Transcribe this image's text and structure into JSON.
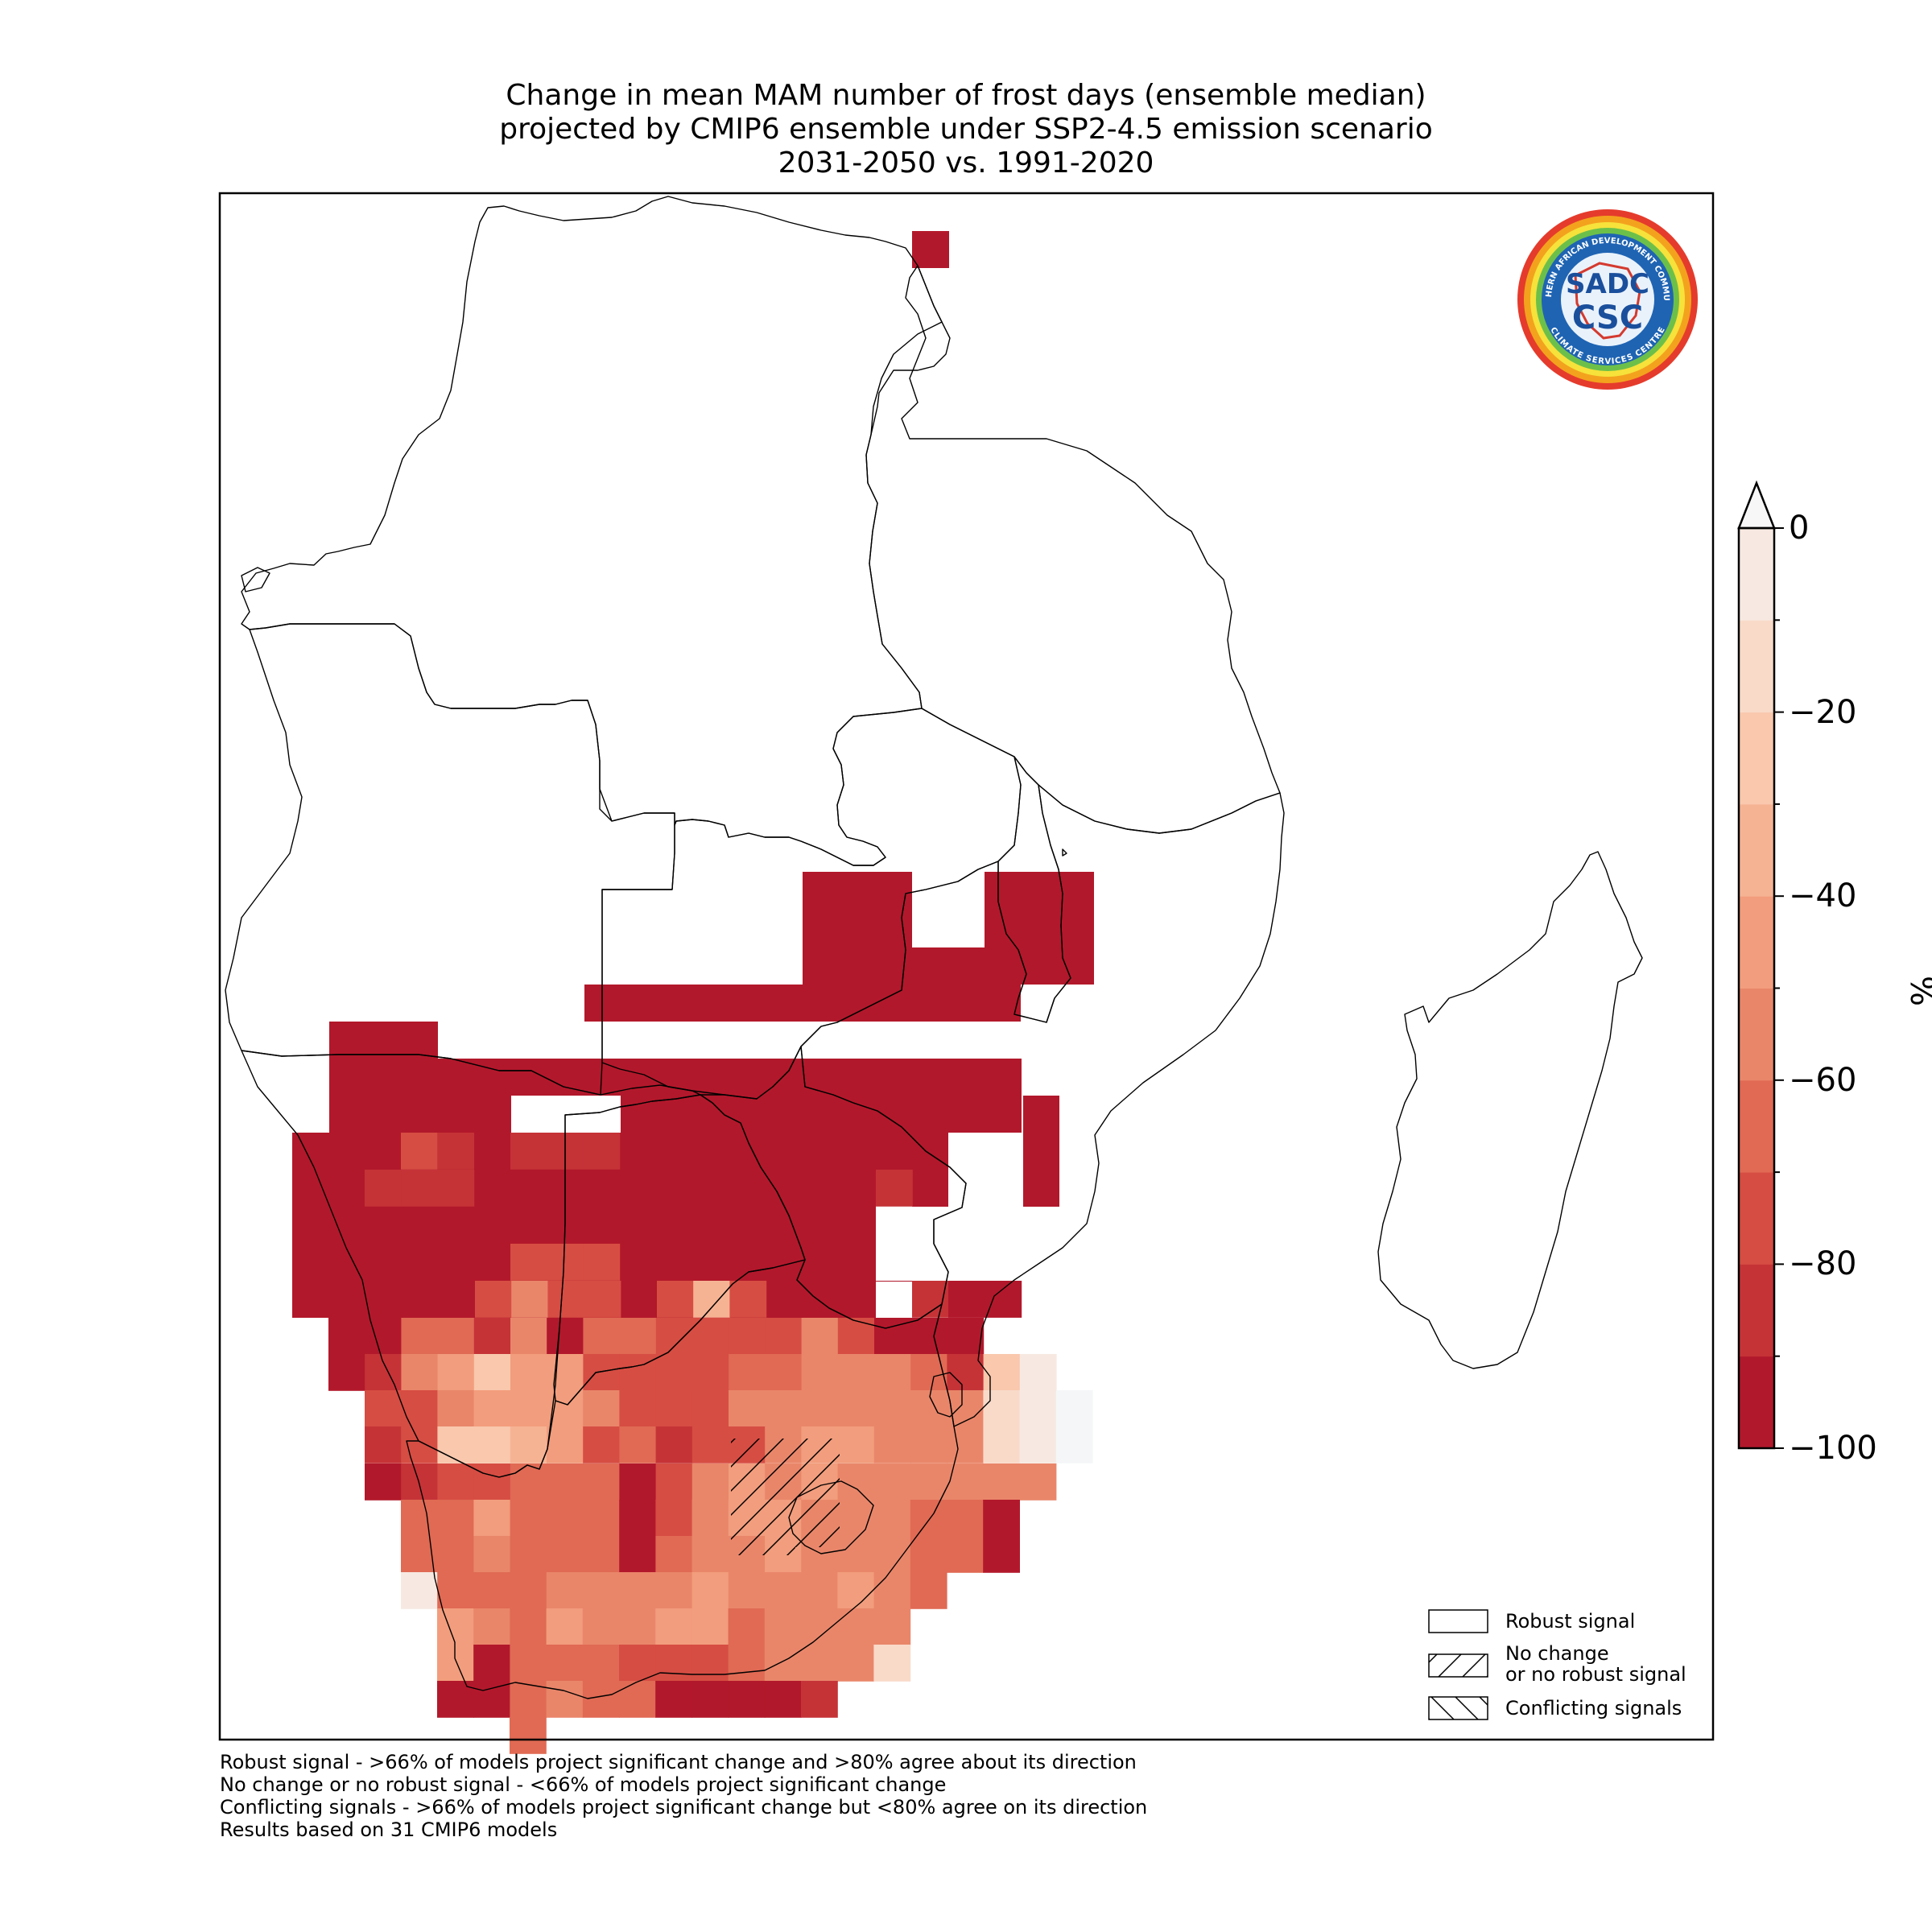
{
  "title": {
    "line1": "Change in mean MAM number of frost days (ensemble median)",
    "line2": "projected by CMIP6 ensemble under SSP2-4.5 emission scenario",
    "line3": "2031-2050 vs. 1991-2020"
  },
  "colorbar": {
    "unit": "%",
    "ticks": [
      "0",
      "−20",
      "−40",
      "−60",
      "−80",
      "−100"
    ],
    "tick_values": [
      0,
      -20,
      -40,
      -60,
      -80,
      -100
    ],
    "extend": "max",
    "colors": [
      "#b2182b",
      "#c53337",
      "#d64d43",
      "#e06a54",
      "#e9866a",
      "#f29d7d",
      "#f6b394",
      "#f9c8ad",
      "#f9dac9",
      "#f7e9e2"
    ]
  },
  "legend": {
    "robust": "Robust signal",
    "nochange_1": "No change",
    "nochange_2": "or no robust signal",
    "conflicting": "Conflicting signals"
  },
  "footnotes": [
    "Robust signal - >66% of models project significant change and >80% agree about its direction",
    "No change or no robust signal - <66% of models project significant change",
    "Conflicting signals - >66% of models project significant change but <80% agree on its direction",
    "Results based on 31 CMIP6 models"
  ],
  "logo": {
    "name": "sadc-csc-logo",
    "text_top": "SOUTHERN AFRICAN DEVELOPMENT COMMUNITY",
    "text_bottom": "CLIMATE SERVICES CENTRE",
    "mark_top": "SADC",
    "mark_bottom": "CSC"
  }
}
